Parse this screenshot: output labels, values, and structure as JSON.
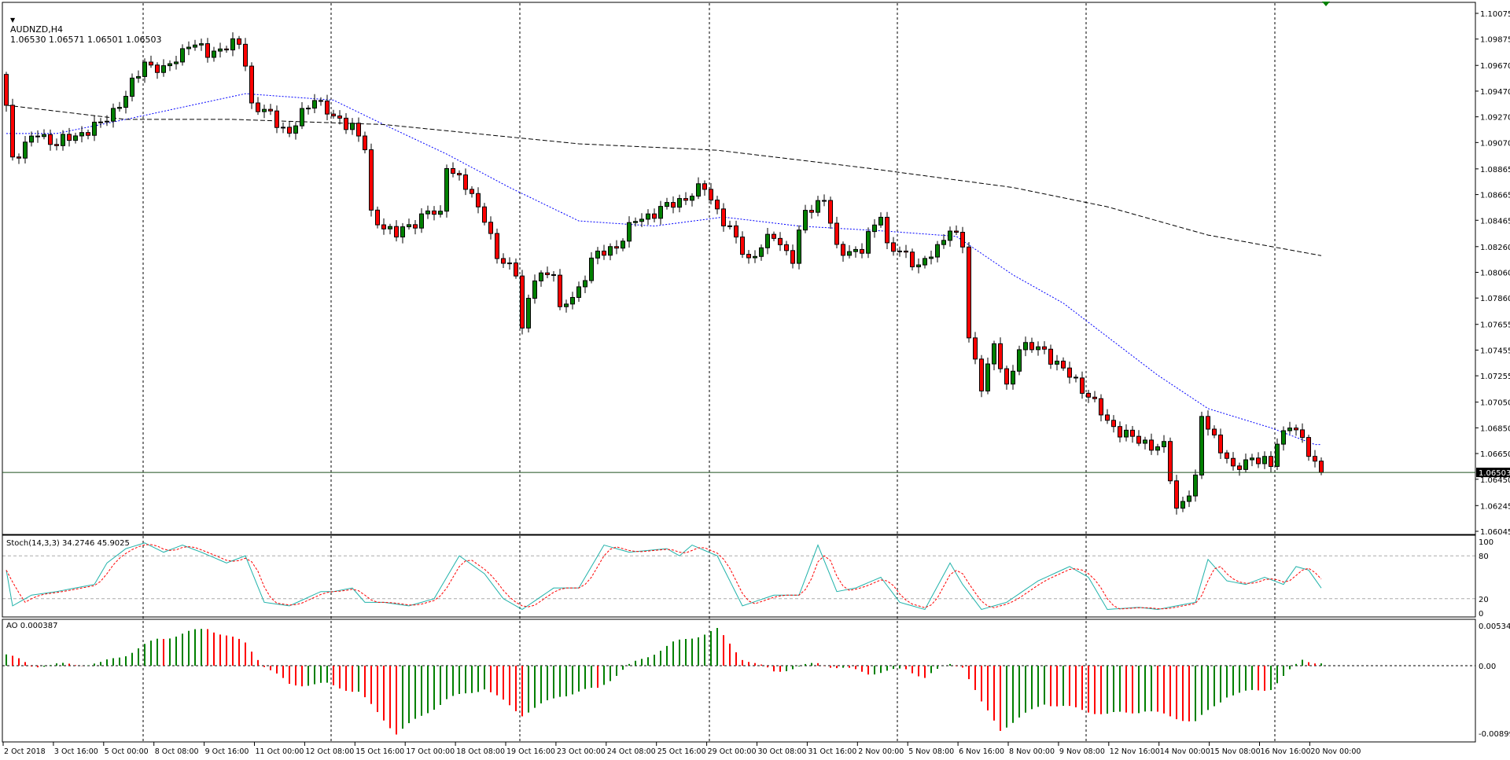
{
  "header": {
    "symbol": "AUDNZD,H4",
    "ohlc": "1.06530 1.06571 1.06501 1.06503"
  },
  "stoch_header": "Stoch(14,3,3) 34.2746 45.9025",
  "ao_header": "AO 0.000387",
  "price_axis": [
    "1.10075",
    "1.09875",
    "1.09670",
    "1.09470",
    "1.09270",
    "1.09070",
    "1.08865",
    "1.08665",
    "1.08465",
    "1.08260",
    "1.08060",
    "1.07860",
    "1.07655",
    "1.07455",
    "1.07255",
    "1.07050",
    "1.06850",
    "1.06650",
    "1.06450",
    "1.06245",
    "1.06045"
  ],
  "current_price": "1.06503",
  "stoch_axis": [
    "100",
    "80",
    "20",
    "0"
  ],
  "ao_axis": [
    "0.005343",
    "0.00",
    "-0.008997"
  ],
  "time_axis": [
    "2 Oct 2018",
    "3 Oct 16:00",
    "5 Oct 00:00",
    "8 Oct 08:00",
    "9 Oct 16:00",
    "11 Oct 00:00",
    "12 Oct 08:00",
    "15 Oct 16:00",
    "17 Oct 00:00",
    "18 Oct 08:00",
    "19 Oct 16:00",
    "23 Oct 00:00",
    "24 Oct 08:00",
    "25 Oct 16:00",
    "29 Oct 00:00",
    "30 Oct 08:00",
    "31 Oct 16:00",
    "2 Nov 00:00",
    "5 Nov 08:00",
    "6 Nov 16:00",
    "8 Nov 00:00",
    "9 Nov 08:00",
    "12 Nov 16:00",
    "14 Nov 00:00",
    "15 Nov 08:00",
    "16 Nov 16:00",
    "20 Nov 00:00"
  ],
  "colors": {
    "bull": "#008000",
    "bear": "#ff0000",
    "ma_fast": "#0000ff",
    "ma_slow": "#000000",
    "stoch_main": "#20b2aa",
    "stoch_signal": "#ff0000",
    "current_line": "#1f4f1f"
  },
  "chart_data": {
    "type": "candlestick",
    "bars": 210,
    "price_range": [
      1.06045,
      1.10075
    ],
    "close_waypoints": [
      [
        0,
        1.0936
      ],
      [
        1,
        1.0895
      ],
      [
        5,
        1.0914
      ],
      [
        8,
        1.0906
      ],
      [
        15,
        1.0921
      ],
      [
        19,
        1.0943
      ],
      [
        22,
        1.097
      ],
      [
        25,
        1.0962
      ],
      [
        29,
        1.0984
      ],
      [
        32,
        1.0977
      ],
      [
        37,
        1.0984
      ],
      [
        38,
        1.097
      ],
      [
        39,
        1.0936
      ],
      [
        42,
        1.0928
      ],
      [
        45,
        1.0914
      ],
      [
        49,
        1.0943
      ],
      [
        52,
        1.0925
      ],
      [
        55,
        1.0921
      ],
      [
        57,
        1.0902
      ],
      [
        58,
        1.085
      ],
      [
        62,
        1.0835
      ],
      [
        67,
        1.0853
      ],
      [
        69,
        1.085
      ],
      [
        70,
        1.0891
      ],
      [
        73,
        1.0872
      ],
      [
        76,
        1.085
      ],
      [
        78,
        1.0816
      ],
      [
        81,
        1.0808
      ],
      [
        82,
        1.0763
      ],
      [
        84,
        1.0801
      ],
      [
        87,
        1.0808
      ],
      [
        88,
        1.0775
      ],
      [
        91,
        1.0793
      ],
      [
        93,
        1.0816
      ],
      [
        97,
        1.0827
      ],
      [
        100,
        1.0846
      ],
      [
        105,
        1.0857
      ],
      [
        111,
        1.0872
      ],
      [
        114,
        1.0846
      ],
      [
        118,
        1.0816
      ],
      [
        122,
        1.0835
      ],
      [
        125,
        1.0816
      ],
      [
        127,
        1.0853
      ],
      [
        130,
        1.0864
      ],
      [
        132,
        1.0823
      ],
      [
        136,
        1.0823
      ],
      [
        139,
        1.0853
      ],
      [
        140,
        1.0827
      ],
      [
        145,
        1.0812
      ],
      [
        148,
        1.0823
      ],
      [
        150,
        1.0842
      ],
      [
        152,
        1.0827
      ],
      [
        153,
        1.0753
      ],
      [
        155,
        1.0719
      ],
      [
        157,
        1.0749
      ],
      [
        159,
        1.0715
      ],
      [
        161,
        1.0749
      ],
      [
        165,
        1.0745
      ],
      [
        168,
        1.073
      ],
      [
        172,
        1.0711
      ],
      [
        175,
        1.0689
      ],
      [
        180,
        1.0674
      ],
      [
        184,
        1.067
      ],
      [
        186,
        1.0621
      ],
      [
        189,
        1.0644
      ],
      [
        190,
        1.0693
      ],
      [
        193,
        1.067
      ],
      [
        195,
        1.0651
      ],
      [
        198,
        1.0663
      ],
      [
        201,
        1.0655
      ],
      [
        202,
        1.0674
      ],
      [
        204,
        1.0689
      ],
      [
        207,
        1.0666
      ],
      [
        209,
        1.06503
      ]
    ],
    "ma_fast": [
      [
        0,
        1.0914
      ],
      [
        8,
        1.0914
      ],
      [
        19,
        1.0925
      ],
      [
        38,
        1.0945
      ],
      [
        52,
        1.094
      ],
      [
        60,
        1.0921
      ],
      [
        70,
        1.0898
      ],
      [
        80,
        1.0872
      ],
      [
        91,
        1.0846
      ],
      [
        103,
        1.0842
      ],
      [
        114,
        1.0849
      ],
      [
        126,
        1.0842
      ],
      [
        140,
        1.0838
      ],
      [
        151,
        1.0834
      ],
      [
        160,
        1.0804
      ],
      [
        168,
        1.0782
      ],
      [
        183,
        1.0726
      ],
      [
        191,
        1.07
      ],
      [
        201,
        1.0685
      ],
      [
        208,
        1.0672
      ]
    ],
    "ma_slow": [
      [
        0,
        1.0936
      ],
      [
        19,
        1.0925
      ],
      [
        36,
        1.0925
      ],
      [
        60,
        1.0921
      ],
      [
        91,
        1.0906
      ],
      [
        113,
        1.0901
      ],
      [
        137,
        1.0887
      ],
      [
        160,
        1.0872
      ],
      [
        175,
        1.0857
      ],
      [
        191,
        1.0835
      ],
      [
        209,
        1.0819
      ]
    ],
    "stoch_k": [
      [
        0,
        60
      ],
      [
        1,
        10
      ],
      [
        4,
        25
      ],
      [
        8,
        30
      ],
      [
        14,
        40
      ],
      [
        16,
        70
      ],
      [
        19,
        90
      ],
      [
        22,
        98
      ],
      [
        25,
        85
      ],
      [
        28,
        95
      ],
      [
        31,
        85
      ],
      [
        35,
        70
      ],
      [
        38,
        80
      ],
      [
        41,
        15
      ],
      [
        45,
        10
      ],
      [
        50,
        30
      ],
      [
        52,
        30
      ],
      [
        55,
        35
      ],
      [
        57,
        15
      ],
      [
        60,
        15
      ],
      [
        64,
        10
      ],
      [
        68,
        20
      ],
      [
        72,
        80
      ],
      [
        76,
        55
      ],
      [
        79,
        20
      ],
      [
        82,
        5
      ],
      [
        87,
        35
      ],
      [
        91,
        35
      ],
      [
        95,
        95
      ],
      [
        99,
        85
      ],
      [
        105,
        90
      ],
      [
        107,
        80
      ],
      [
        109,
        95
      ],
      [
        113,
        80
      ],
      [
        117,
        10
      ],
      [
        122,
        25
      ],
      [
        126,
        25
      ],
      [
        129,
        95
      ],
      [
        132,
        30
      ],
      [
        135,
        35
      ],
      [
        139,
        50
      ],
      [
        142,
        15
      ],
      [
        146,
        5
      ],
      [
        150,
        70
      ],
      [
        152,
        40
      ],
      [
        155,
        5
      ],
      [
        159,
        15
      ],
      [
        164,
        45
      ],
      [
        169,
        65
      ],
      [
        172,
        50
      ],
      [
        175,
        5
      ],
      [
        180,
        8
      ],
      [
        183,
        5
      ],
      [
        189,
        15
      ],
      [
        191,
        75
      ],
      [
        194,
        45
      ],
      [
        197,
        40
      ],
      [
        200,
        50
      ],
      [
        203,
        40
      ],
      [
        205,
        65
      ],
      [
        207,
        60
      ],
      [
        209,
        35
      ]
    ],
    "ao_e3": [
      [
        0,
        1.5
      ],
      [
        4,
        0
      ],
      [
        15,
        0.3
      ],
      [
        19,
        1.5
      ],
      [
        24,
        3.5
      ],
      [
        32,
        5.0
      ],
      [
        38,
        3
      ],
      [
        41,
        0
      ],
      [
        45,
        -2.5
      ],
      [
        51,
        -2.5
      ],
      [
        56,
        -3.5
      ],
      [
        62,
        -9
      ],
      [
        70,
        -4.5
      ],
      [
        76,
        -3
      ],
      [
        82,
        -6.5
      ],
      [
        88,
        -4
      ],
      [
        94,
        -3
      ],
      [
        99,
        0
      ],
      [
        106,
        3
      ],
      [
        113,
        4.8
      ],
      [
        117,
        1
      ],
      [
        122,
        -0.8
      ],
      [
        129,
        0.3
      ],
      [
        137,
        -1
      ],
      [
        143,
        -0.5
      ],
      [
        146,
        -1.5
      ],
      [
        150,
        0.2
      ],
      [
        152,
        0
      ],
      [
        155,
        -5
      ],
      [
        158,
        -8.5
      ],
      [
        165,
        -5
      ],
      [
        175,
        -6.5
      ],
      [
        181,
        -6
      ],
      [
        189,
        -7.5
      ],
      [
        194,
        -4
      ],
      [
        201,
        -3
      ],
      [
        206,
        0.8
      ],
      [
        209,
        0.4
      ]
    ]
  }
}
